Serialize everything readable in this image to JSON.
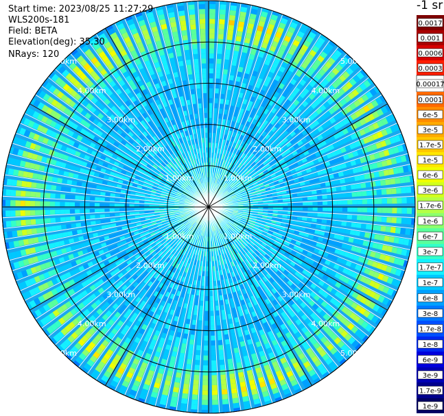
{
  "header": {
    "start_time": "Start time: 2023/08/25 11:27:29",
    "device": "WLS200s-181",
    "field": "Field: BETA",
    "elevation": "Elevation(deg): 35.30",
    "nrays": "NRays: 120"
  },
  "chart_data": {
    "type": "polar-ppi",
    "title": "",
    "n_rays": 120,
    "elevation_deg": 35.3,
    "range_rings_km": [
      1,
      2,
      3,
      4,
      5
    ],
    "ring_labels": [
      "1.00km",
      "2.00km",
      "3.00km",
      "4.00km",
      "5.00km"
    ],
    "max_range_km": 5.0,
    "colorbar": {
      "unit": "-1 sr",
      "ticks": [
        "0.0017",
        "0.001",
        "0.0006",
        "0.0003",
        "0.00017",
        "0.0001",
        "6e-5",
        "3e-5",
        "1.7e-5",
        "1e-5",
        "6e-6",
        "3e-6",
        "1.7e-6",
        "1e-6",
        "6e-7",
        "3e-7",
        "1.7e-7",
        "1e-7",
        "6e-8",
        "3e-8",
        "1.7e-8",
        "1e-8",
        "6e-9",
        "3e-9",
        "1.7e-9",
        "1e-9"
      ],
      "colors": [
        "#7f0000",
        "#a80000",
        "#d60000",
        "#ff1e00",
        "#ffffff",
        "#ff6a00",
        "#ff8c00",
        "#ffaa00",
        "#ffc800",
        "#ffe600",
        "#f0ff00",
        "#d2ff1e",
        "#b4ff46",
        "#8cff6e",
        "#5aff9b",
        "#34ffc8",
        "#14f0ff",
        "#00c8ff",
        "#00a0ff",
        "#0078ff",
        "#0050ff",
        "#0028f0",
        "#0000dc",
        "#0000b4",
        "#00008c",
        "#000064"
      ]
    },
    "beta_profile_by_range_km": [
      {
        "range_km": 0.0,
        "beta": "3e-7"
      },
      {
        "range_km": 1.0,
        "beta": "1.7e-7"
      },
      {
        "range_km": 2.0,
        "beta": "1e-7"
      },
      {
        "range_km": 3.0,
        "beta": "1e-7"
      },
      {
        "range_km": 3.8,
        "beta": "1.7e-7"
      },
      {
        "range_km": 4.3,
        "beta": "1e-6"
      },
      {
        "range_km": 4.5,
        "beta": "3e-6"
      },
      {
        "range_km": 4.7,
        "beta": "3e-7"
      },
      {
        "range_km": 5.0,
        "beta": "6e-8"
      }
    ]
  }
}
